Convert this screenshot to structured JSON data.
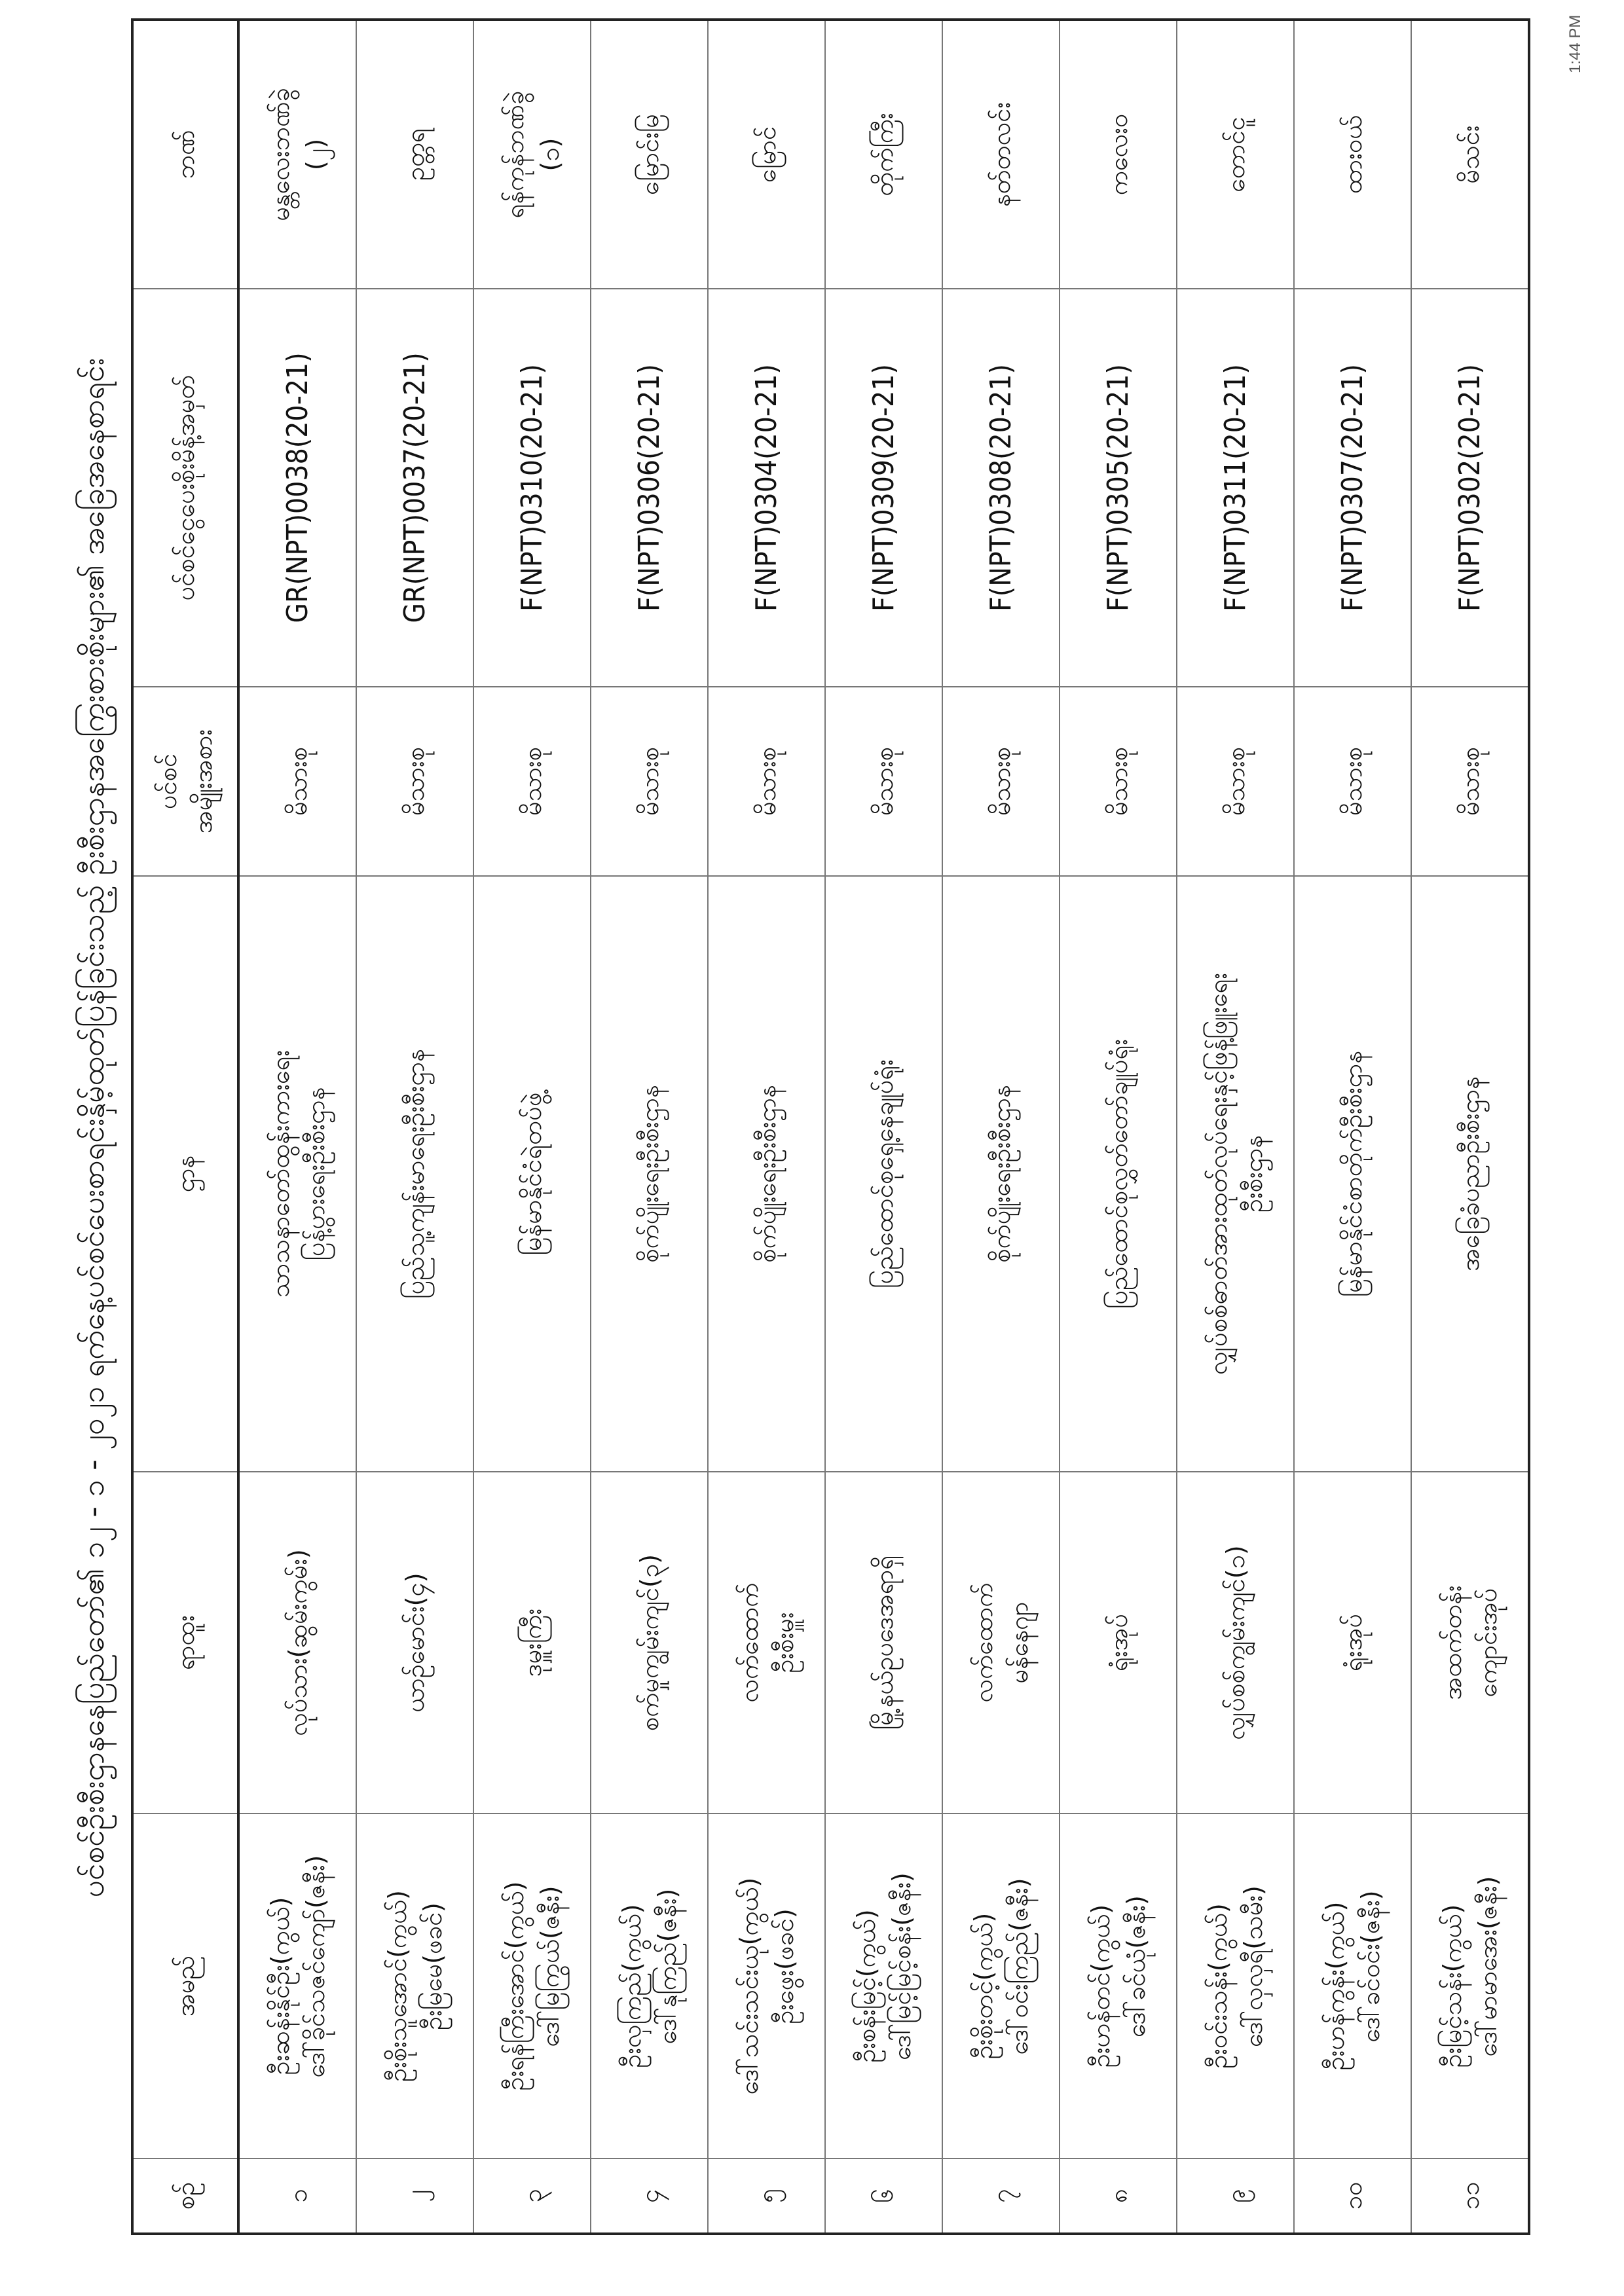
{
  "title": "ပင်စင်ဦးစီးဌာနနေပြည်တော်၏ ၁၂ - ၁ - ၂၀၂၁ ရက်နေ့ပင်စင်ပေးစာရင်းနှိမ့်ထုတ်ပြန်ခြင်းသည့် ဦးစီးဌာနအကြွေးစားစိုးများ၏ အခြေအနေစာရင်း",
  "timestamp": "1:44 PM",
  "headers": {
    "no": "စဉ်",
    "name": "အမည်",
    "position": "ရာထူး",
    "department": "ဌာန",
    "type": [
      "ပင်စင်",
      "အမျိုးအစား"
    ],
    "order_no": "ပင်စင်ငွေပေးစိုးမိန့်အမှတ်",
    "bank": "ဘဏ်"
  },
  "rows": [
    {
      "no": "၁",
      "name": [
        "ဦးဆန်းနိုင်ဦး(ကွယ်)",
        "ဒေါ်ခိုင်သဇင်ကျော်(ဇနီး)"
      ],
      "position": [
        "လုပ်သား(ဆွမ်းကွမ်း)"
      ],
      "department": [
        "သာသနာတော်ထွန်းကားရေး",
        "ပြန့်ပွားရေးဦးစီးဌာန"
      ],
      "type": "မိသားစု",
      "order_no": "GR(NPT)0038(20-21)",
      "bank": [
        "မန္တလေးဘဏ်ခွဲ",
        "(၂)"
      ]
    },
    {
      "no": "၂",
      "name": [
        "ဦးစိုးသူအောင်(ကွယ်)",
        "ဦးမြမေ(ဖခင်)"
      ],
      "position": [
        "ယာဉ်မောင်း(၄)"
      ],
      "department": [
        "ပြည်သူ့ကျန်းမာရေးဦးစီးဌာန"
      ],
      "type": "မိသားစု",
      "order_no": "GR(NPT)0037(20-21)",
      "bank": [
        "ဥတ္တရ"
      ]
    },
    {
      "no": "၃",
      "name": [
        "ဦးရန်ကြီးအောင်(ကွယ်)",
        "ဒေါ်မြကြွယ်(ဇနီး)"
      ],
      "position": [
        "ဒုမှူးကြီး"
      ],
      "department": [
        "မြန်မာနိုင်ငံရဲတပ်ဖွဲ့"
      ],
      "type": "မိသားစု",
      "order_no": "F(NPT)0310(20-21)",
      "bank": [
        "ရန်ကုန်ဘဏ်ခွဲ",
        "(၁)"
      ]
    },
    {
      "no": "၄",
      "name": [
        "ဦးလှကြည်(ကွယ်)",
        "ဒေါ်နုကြည်(ဇနီး)"
      ],
      "position": [
        "စက်မှုကျွမ်းကျင်(၃)"
      ],
      "department": [
        "စိုက်ပျိုးရေးဦးစီးဌာန"
      ],
      "type": "မိသားစု",
      "order_no": "F(NPT)0306(20-21)",
      "bank": [
        "မြောင်းမြ"
      ]
    },
    {
      "no": "၅",
      "name": [
        "ဒေါ်သင်းသင်းယု(ကွယ်)",
        "ဦးဖွေး(ဖခင်)"
      ],
      "position": [
        "လက်ထောက်",
        "ဦးစီးမှူး"
      ],
      "department": [
        "စိုက်ပျိုးရေးဦးစီးဌာန"
      ],
      "type": "မိသားစု",
      "order_no": "F(NPT)0304(20-21)",
      "bank": [
        "မြောင်"
      ]
    },
    {
      "no": "၆",
      "name": [
        "ဦးစန်းမြင့်(ကွယ်)",
        "ဒေါ်မြင့်မြင့်စန်း(ဇနီး)"
      ],
      "position": [
        "မြို့နယ်ဥပဒေအရာရှိ"
      ],
      "department": [
        "ပြည်ထောင်စုရှေ့နေချုပ်ရုံး"
      ],
      "type": "မိသားစု",
      "order_no": "F(NPT)0309(20-21)",
      "bank": [
        "တိုက်ကြီး"
      ]
    },
    {
      "no": "၇",
      "name": [
        "ဦးစိုးတင့်(ကွယ်)",
        "ဒေါ်ဝင်းကြည်(ဇနီး)"
      ],
      "position": [
        "လက်ထောက်",
        "မန်နေဂျာ"
      ],
      "department": [
        "စိုက်ပျိုးရေးဦးစီးဌာန"
      ],
      "type": "မိသားစု",
      "order_no": "F(NPT)0308(20-21)",
      "bank": [
        "နတ်တလင်း"
      ]
    },
    {
      "no": "၈",
      "name": [
        "ဦးဟန်တင်(ကွယ်)",
        "ဒေါ်ခင်ယုံ(ဇနီး)"
      ],
      "position": [
        "ရုံးအုပ်"
      ],
      "department": [
        "ပြည်ထောင်စုလွှတ်တော်ချုပ်ရုံး"
      ],
      "type": "မိသားစု",
      "order_no": "F(NPT)0305(20-21)",
      "bank": [
        "ကလေးဝ"
      ]
    },
    {
      "no": "၉",
      "name": [
        "ဦးဝင်းသန်း(ကွယ်)",
        "ဒေါ်လှလှရီ(သမီး)"
      ],
      "position": [
        "လျှပ်စစ်ကျွမ်းကျင်(၁)"
      ],
      "department": [
        "လျှပ်စစ်ဓာတ်အားထုတ်လုပ်ရေးနှင့်ဖြန့်ဖြူးရေး",
        "ဦးစီးဌာန"
      ],
      "type": "မိသားစု",
      "order_no": "F(NPT)0311(20-21)",
      "bank": [
        "တောင်ငူ"
      ]
    },
    {
      "no": "၁၀",
      "name": [
        "ဦးဟန်ကွန်း(ကွယ်)",
        "ဒေါ်ခင်ဝင်း(ဇနီး)"
      ],
      "position": [
        "ရုံးအုပ်"
      ],
      "department": [
        "မြန်မာနိုင်ငံစာတိုက်ဦးစီးဌာန"
      ],
      "type": "မိသားစု",
      "order_no": "F(NPT)0307(20-21)",
      "bank": [
        "ထားဝယ်"
      ]
    },
    {
      "no": "၁၁",
      "name": [
        "ဦးမြင့်သန်း(ကွယ်)",
        "ဒေါ်မာမာအေး(ဇနီး)"
      ],
      "position": [
        "အထက်တန်း",
        "ကျောင်းအုပ်"
      ],
      "department": [
        "အခြေခံပညာဦးစီးဌာန"
      ],
      "type": "မိသားစု",
      "order_no": "F(NPT)0302(20-21)",
      "bank": [
        "မိသင်း"
      ]
    }
  ]
}
